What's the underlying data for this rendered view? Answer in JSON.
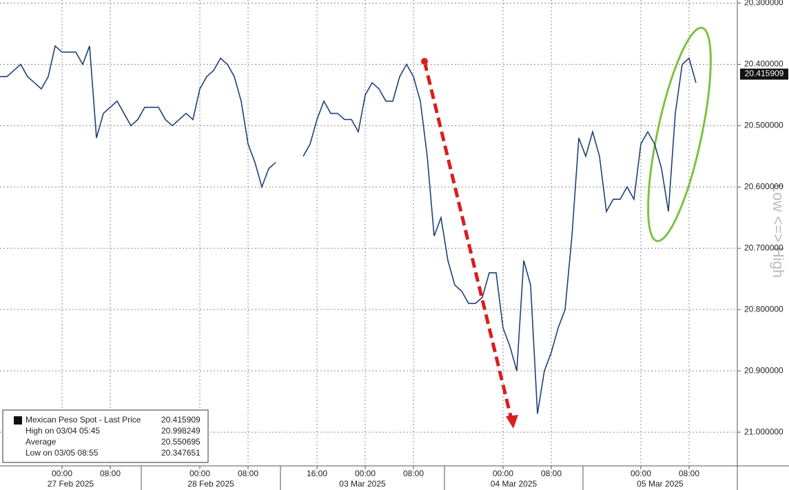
{
  "chart_data": {
    "type": "line",
    "y_axis_label": "Low <=> High",
    "inverted": true,
    "grid": true,
    "ylim": [
      20.295,
      21.055
    ],
    "yticks": [
      {
        "value": 20.3,
        "label": "20.300000"
      },
      {
        "value": 20.4,
        "label": "20.400000"
      },
      {
        "value": 20.5,
        "label": "20.500000"
      },
      {
        "value": 20.6,
        "label": "20.600000"
      },
      {
        "value": 20.7,
        "label": "20.700000"
      },
      {
        "value": 20.8,
        "label": "20.800000"
      },
      {
        "value": 20.9,
        "label": "20.900000"
      },
      {
        "value": 21.0,
        "label": "21.000000"
      }
    ],
    "dates": [
      "27 Feb 2025",
      "28 Feb 2025",
      "03 Mar 2025",
      "04 Mar 2025",
      "05 Mar 2025"
    ],
    "categories": [
      null,
      null,
      null,
      null,
      null,
      null,
      null,
      null,
      null,
      "00:00",
      null,
      null,
      null,
      null,
      null,
      null,
      "08:00",
      null,
      null,
      null,
      null,
      null,
      null,
      null,
      null,
      null,
      null,
      null,
      null,
      "00:00",
      null,
      null,
      null,
      null,
      null,
      null,
      "08:00",
      null,
      null,
      null,
      null,
      null,
      null,
      null,
      null,
      null,
      "16:00",
      null,
      null,
      null,
      null,
      null,
      null,
      "00:00",
      null,
      null,
      null,
      null,
      null,
      null,
      "08:00",
      null,
      null,
      null,
      null,
      null,
      null,
      null,
      null,
      null,
      null,
      null,
      null,
      "00:00",
      null,
      null,
      null,
      null,
      null,
      null,
      "08:00",
      null,
      null,
      null,
      null,
      null,
      null,
      null,
      null,
      null,
      null,
      null,
      null,
      "00:00",
      null,
      null,
      null,
      null,
      null,
      null,
      "08:00",
      null
    ],
    "series": [
      {
        "name": "Mexican Peso Spot - Last Price",
        "color": "#1d3f78",
        "values": [
          20.42,
          20.42,
          20.41,
          20.4,
          20.42,
          20.43,
          20.44,
          20.42,
          20.37,
          20.38,
          20.38,
          20.38,
          20.4,
          20.37,
          20.52,
          20.48,
          20.47,
          20.46,
          20.48,
          20.5,
          20.49,
          20.47,
          20.47,
          20.47,
          20.49,
          20.5,
          20.49,
          20.48,
          20.49,
          20.44,
          20.42,
          20.41,
          20.39,
          20.4,
          20.42,
          20.46,
          20.53,
          20.56,
          20.6,
          20.57,
          20.56,
          null,
          null,
          null,
          20.55,
          20.53,
          20.49,
          20.46,
          20.48,
          20.48,
          20.49,
          20.49,
          20.51,
          20.45,
          20.43,
          20.44,
          20.46,
          20.46,
          20.42,
          20.4,
          20.42,
          20.46,
          20.55,
          20.68,
          20.65,
          20.72,
          20.76,
          20.77,
          20.79,
          20.79,
          20.78,
          20.74,
          20.74,
          20.83,
          20.86,
          20.9,
          20.72,
          20.76,
          20.97,
          20.9,
          20.87,
          20.83,
          20.8,
          20.68,
          20.52,
          20.55,
          20.51,
          20.55,
          20.64,
          20.62,
          20.62,
          20.6,
          20.62,
          20.53,
          20.51,
          20.53,
          20.57,
          20.64,
          20.48,
          20.4,
          20.39,
          20.43
        ]
      }
    ],
    "last_price": 20.415909,
    "legend": [
      {
        "label": "Mexican Peso Spot - Last Price",
        "value": 20.415909
      },
      {
        "label": "High on 03/04 05:45",
        "value": 20.998249
      },
      {
        "label": "Average",
        "value": 20.550695
      },
      {
        "label": "Low on 03/05 08:55",
        "value": 20.347651
      }
    ]
  }
}
